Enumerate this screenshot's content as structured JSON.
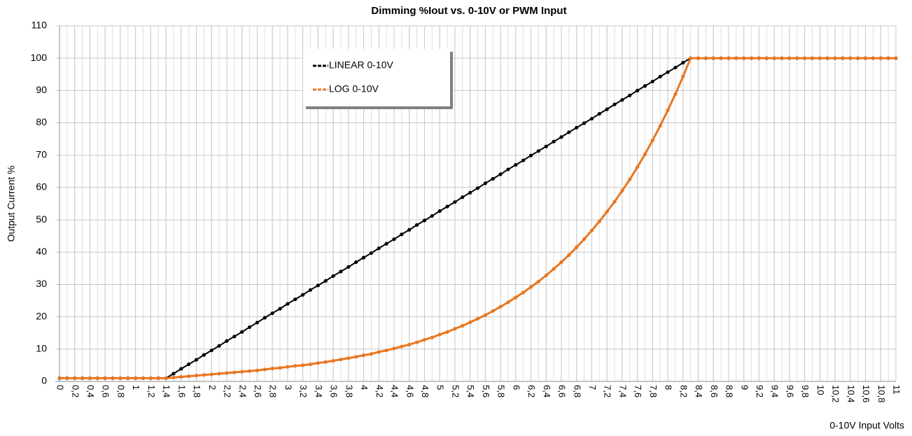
{
  "chart_data": {
    "type": "line",
    "title": "Dimming %Iout vs. 0-10V or PWM Input",
    "ylabel": "Output Current %",
    "xlabel": "0-10V Input Volts",
    "x": [
      0,
      0.1,
      0.2,
      0.3,
      0.4,
      0.5,
      0.6,
      0.7,
      0.8,
      0.9,
      1,
      1.1,
      1.2,
      1.3,
      1.4,
      1.5,
      1.6,
      1.7,
      1.8,
      1.9,
      2,
      2.1,
      2.2,
      2.3,
      2.4,
      2.5,
      2.6,
      2.7,
      2.8,
      2.9,
      3,
      3.1,
      3.2,
      3.3,
      3.4,
      3.5,
      3.6,
      3.7,
      3.8,
      3.9,
      4,
      4.1,
      4.2,
      4.3,
      4.4,
      4.5,
      4.6,
      4.7,
      4.8,
      4.9,
      5,
      5.1,
      5.2,
      5.3,
      5.4,
      5.5,
      5.6,
      5.7,
      5.8,
      5.9,
      6,
      6.1,
      6.2,
      6.3,
      6.4,
      6.5,
      6.6,
      6.7,
      6.8,
      6.9,
      7,
      7.1,
      7.2,
      7.3,
      7.4,
      7.5,
      7.6,
      7.7,
      7.8,
      7.9,
      8,
      8.1,
      8.2,
      8.3,
      8.4,
      8.5,
      8.6,
      8.7,
      8.8,
      8.9,
      9,
      9.1,
      9.2,
      9.3,
      9.4,
      9.5,
      9.6,
      9.7,
      9.8,
      9.9,
      10,
      10.1,
      10.2,
      10.3,
      10.4,
      10.5,
      10.6,
      10.7,
      10.8,
      10.9,
      11
    ],
    "series": [
      {
        "name": "LINEAR 0-10V",
        "color": "#000000",
        "values": [
          1,
          1,
          1,
          1,
          1,
          1,
          1,
          1,
          1,
          1,
          1,
          1,
          1,
          1,
          1,
          2.4,
          3.9,
          5.3,
          6.7,
          8.2,
          9.6,
          11.0,
          12.5,
          13.9,
          15.3,
          16.8,
          18.2,
          19.7,
          21.1,
          22.5,
          24.0,
          25.4,
          26.8,
          28.3,
          29.7,
          31.1,
          32.6,
          34.0,
          35.4,
          36.9,
          38.3,
          39.7,
          41.2,
          42.6,
          44.0,
          45.5,
          46.9,
          48.4,
          49.8,
          51.2,
          52.7,
          54.1,
          55.5,
          57.0,
          58.4,
          59.8,
          61.3,
          62.7,
          64.1,
          65.6,
          67.0,
          68.4,
          69.9,
          71.3,
          72.7,
          74.2,
          75.6,
          77.1,
          78.5,
          79.9,
          81.3,
          82.8,
          84.2,
          85.7,
          87.1,
          88.5,
          90.0,
          91.4,
          92.8,
          94.3,
          95.7,
          97.1,
          98.6,
          100,
          100,
          100,
          100,
          100,
          100,
          100,
          100,
          100,
          100,
          100,
          100,
          100,
          100,
          100,
          100,
          100,
          100,
          100,
          100,
          100,
          100,
          100,
          100,
          100,
          100,
          100,
          100
        ]
      },
      {
        "name": "LOG 0-10V",
        "color": "#e87722",
        "values": [
          1,
          1,
          1,
          1,
          1,
          1,
          1,
          1,
          1,
          1,
          1,
          1,
          1,
          1,
          1,
          1.2,
          1.4,
          1.6,
          1.8,
          2.0,
          2.2,
          2.4,
          2.6,
          2.8,
          3.0,
          3.2,
          3.4,
          3.7,
          4.0,
          4.2,
          4.5,
          4.8,
          5.0,
          5.3,
          5.7,
          6.0,
          6.4,
          6.8,
          7.2,
          7.6,
          8.1,
          8.5,
          9.1,
          9.6,
          10.2,
          10.8,
          11.4,
          12.1,
          12.9,
          13.6,
          14.5,
          15.3,
          16.3,
          17.2,
          18.3,
          19.4,
          20.5,
          21.8,
          23.1,
          24.5,
          26.0,
          27.5,
          29.2,
          30.9,
          32.8,
          34.8,
          36.9,
          39.1,
          41.5,
          44.0,
          46.7,
          49.5,
          52.5,
          55.6,
          59.0,
          62.5,
          66.3,
          70.3,
          74.6,
          79.1,
          83.9,
          88.9,
          94.3,
          100,
          100,
          100,
          100,
          100,
          100,
          100,
          100,
          100,
          100,
          100,
          100,
          100,
          100,
          100,
          100,
          100,
          100,
          100,
          100,
          100,
          100,
          100,
          100,
          100,
          100,
          100,
          100
        ]
      }
    ],
    "xlim": [
      0,
      11
    ],
    "xticks": [
      0,
      {
        "value": 0.2,
        "label": "0,2"
      },
      {
        "value": 0.4,
        "label": "0,4"
      },
      {
        "value": 0.6,
        "label": "0,6"
      },
      {
        "value": 0.8,
        "label": "0,8"
      },
      1,
      {
        "value": 1.2,
        "label": "1,2"
      },
      {
        "value": 1.4,
        "label": "1,4"
      },
      {
        "value": 1.6,
        "label": "1,6"
      },
      {
        "value": 1.8,
        "label": "1,8"
      },
      2,
      {
        "value": 2.2,
        "label": "2,2"
      },
      {
        "value": 2.4,
        "label": "2,4"
      },
      {
        "value": 2.6,
        "label": "2,6"
      },
      {
        "value": 2.8,
        "label": "2,8"
      },
      3,
      {
        "value": 3.2,
        "label": "3,2"
      },
      {
        "value": 3.4,
        "label": "3,4"
      },
      {
        "value": 3.6,
        "label": "3,6"
      },
      {
        "value": 3.8,
        "label": "3,8"
      },
      4,
      {
        "value": 4.2,
        "label": "4,2"
      },
      {
        "value": 4.4,
        "label": "4,4"
      },
      {
        "value": 4.6,
        "label": "4,6"
      },
      {
        "value": 4.8,
        "label": "4,8"
      },
      5,
      {
        "value": 5.2,
        "label": "5,2"
      },
      {
        "value": 5.4,
        "label": "5,4"
      },
      {
        "value": 5.6,
        "label": "5,6"
      },
      {
        "value": 5.8,
        "label": "5,8"
      },
      6,
      {
        "value": 6.2,
        "label": "6,2"
      },
      {
        "value": 6.4,
        "label": "6,4"
      },
      {
        "value": 6.6,
        "label": "6,6"
      },
      {
        "value": 6.8,
        "label": "6,8"
      },
      7,
      {
        "value": 7.2,
        "label": "7,2"
      },
      {
        "value": 7.4,
        "label": "7,4"
      },
      {
        "value": 7.6,
        "label": "7,6"
      },
      {
        "value": 7.8,
        "label": "7,8"
      },
      8,
      {
        "value": 8.2,
        "label": "8,2"
      },
      {
        "value": 8.4,
        "label": "8,4"
      },
      {
        "value": 8.6,
        "label": "8,6"
      },
      {
        "value": 8.8,
        "label": "8,8"
      },
      9,
      {
        "value": 9.2,
        "label": "9,2"
      },
      {
        "value": 9.4,
        "label": "9,4"
      },
      {
        "value": 9.6,
        "label": "9,6"
      },
      {
        "value": 9.8,
        "label": "9,8"
      },
      10,
      {
        "value": 10.2,
        "label": "10,2"
      },
      {
        "value": 10.4,
        "label": "10,4"
      },
      {
        "value": 10.6,
        "label": "10,6"
      },
      {
        "value": 10.8,
        "label": "10,8"
      },
      11
    ],
    "ylim": [
      0,
      110
    ],
    "yticks": [
      0,
      10,
      20,
      30,
      40,
      50,
      60,
      70,
      80,
      90,
      100,
      110
    ],
    "grid": true,
    "legend": "top-left"
  }
}
